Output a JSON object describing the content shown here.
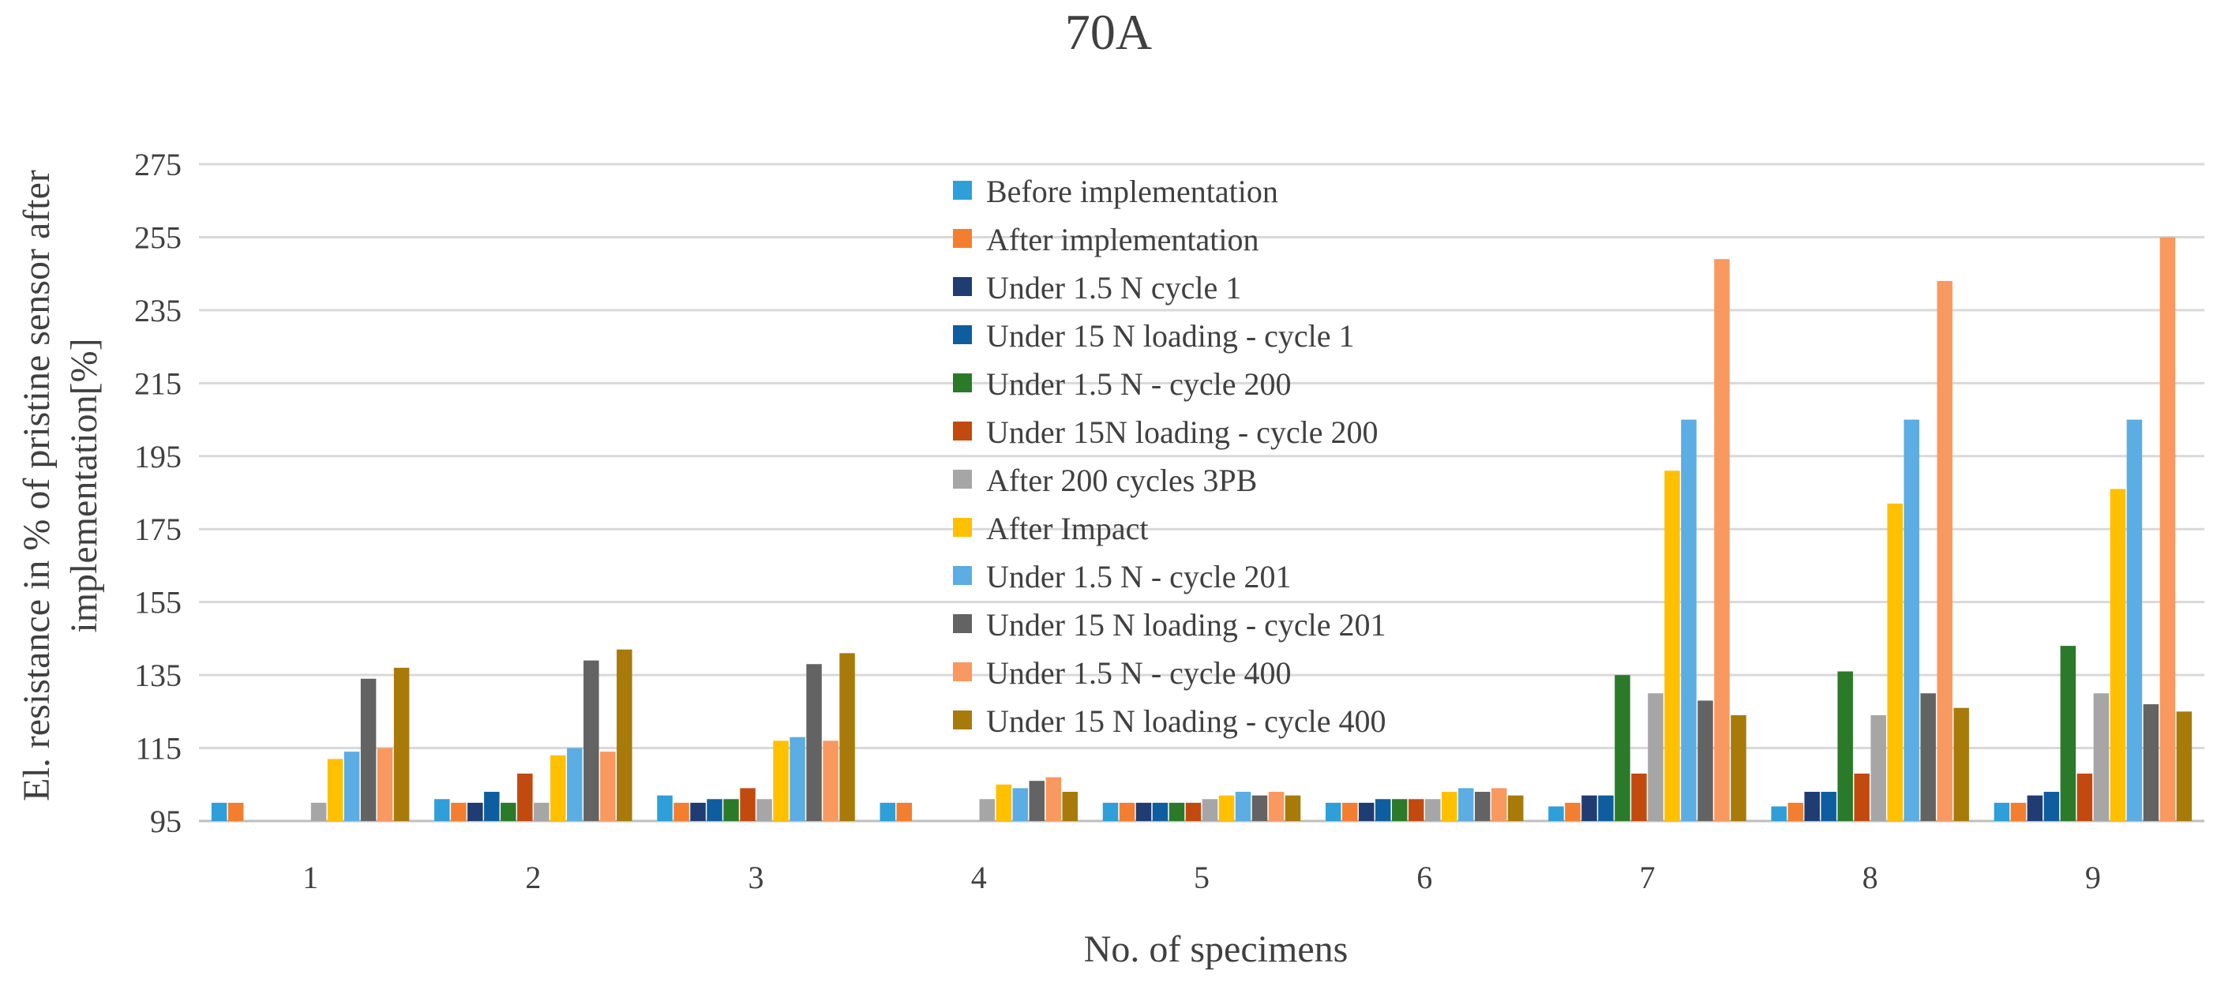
{
  "chart_data": {
    "type": "bar",
    "title": "70A",
    "xlabel": "No. of specimens",
    "ylabel_lines": [
      "El. resistance in % of pristine sensor after",
      "implementation[%]"
    ],
    "ylim": [
      95,
      275
    ],
    "yticks": [
      95,
      115,
      135,
      155,
      175,
      195,
      215,
      235,
      255,
      275
    ],
    "grid": true,
    "legend_position": "top-center",
    "categories": [
      "1",
      "2",
      "3",
      "4",
      "5",
      "6",
      "7",
      "8",
      "9"
    ],
    "series": [
      {
        "name": "Before implementation",
        "color": "#2E9FD8",
        "values": [
          100,
          101,
          102,
          100,
          100,
          100,
          99,
          99,
          100
        ]
      },
      {
        "name": "After implementation",
        "color": "#F47E2F",
        "values": [
          100,
          100,
          100,
          100,
          100,
          100,
          100,
          100,
          100
        ]
      },
      {
        "name": "Under 1.5 N cycle 1",
        "color": "#1F3C73",
        "values": [
          null,
          100,
          100,
          null,
          100,
          100,
          102,
          103,
          102
        ]
      },
      {
        "name": "Under 15 N loading - cycle 1",
        "color": "#0E5E9F",
        "values": [
          null,
          103,
          101,
          null,
          100,
          101,
          102,
          103,
          103
        ]
      },
      {
        "name": "Under 1.5 N - cycle 200",
        "color": "#2A7A2A",
        "values": [
          null,
          100,
          101,
          null,
          100,
          101,
          135,
          136,
          143
        ]
      },
      {
        "name": "Under 15N loading - cycle 200",
        "color": "#C24A0E",
        "values": [
          null,
          108,
          104,
          null,
          100,
          101,
          108,
          108,
          108
        ]
      },
      {
        "name": "After 200 cycles 3PB",
        "color": "#A6A6A6",
        "values": [
          100,
          100,
          101,
          101,
          101,
          101,
          130,
          124,
          130
        ]
      },
      {
        "name": "After Impact",
        "color": "#FFC000",
        "values": [
          112,
          113,
          117,
          105,
          102,
          103,
          191,
          182,
          186
        ]
      },
      {
        "name": "Under 1.5 N - cycle 201",
        "color": "#5BADE3",
        "values": [
          114,
          115,
          118,
          104,
          103,
          104,
          205,
          205,
          205
        ]
      },
      {
        "name": "Under 15 N loading - cycle 201",
        "color": "#636363",
        "values": [
          134,
          139,
          138,
          106,
          102,
          103,
          128,
          130,
          127
        ]
      },
      {
        "name": "Under 1.5 N -  cycle 400",
        "color": "#F9985F",
        "values": [
          115,
          114,
          117,
          107,
          103,
          104,
          249,
          243,
          255
        ]
      },
      {
        "name": "Under 15 N loading - cycle 400",
        "color": "#A87A0A",
        "values": [
          137,
          142,
          141,
          103,
          102,
          102,
          124,
          126,
          125
        ]
      }
    ]
  }
}
